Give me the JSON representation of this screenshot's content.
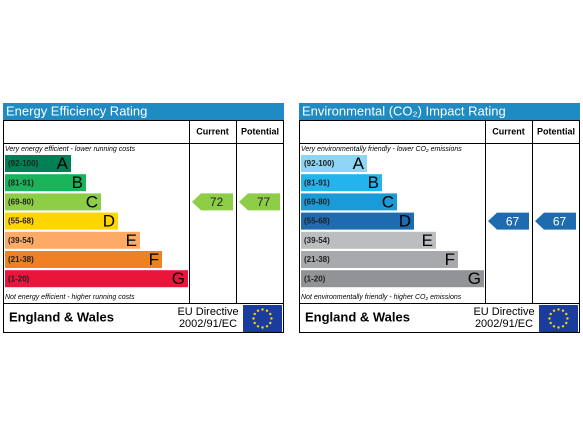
{
  "panels": [
    {
      "title": "Energy Efficiency Rating",
      "col_current": "Current",
      "col_potential": "Potential",
      "top_note": "Very energy efficient - lower running costs",
      "bottom_note": "Not energy efficient - higher running costs",
      "bands": [
        {
          "range": "(92-100)",
          "letter": "A",
          "color": "#008054"
        },
        {
          "range": "(81-91)",
          "letter": "B",
          "color": "#19b459"
        },
        {
          "range": "(69-80)",
          "letter": "C",
          "color": "#8dce46"
        },
        {
          "range": "(55-68)",
          "letter": "D",
          "color": "#ffd500"
        },
        {
          "range": "(39-54)",
          "letter": "E",
          "color": "#fcaa65"
        },
        {
          "range": "(21-38)",
          "letter": "F",
          "color": "#ef8023"
        },
        {
          "range": "(1-20)",
          "letter": "G",
          "color": "#e9153b"
        }
      ],
      "current": 72,
      "potential": 77,
      "footer": "England & Wales",
      "directive_line1": "EU Directive",
      "directive_line2": "2002/91/EC"
    },
    {
      "title": "Environmental (CO₂) Impact Rating",
      "col_current": "Current",
      "col_potential": "Potential",
      "top_note": "Very environmentally friendly - lower CO₂ emissions",
      "bottom_note": "Not environmentally friendly - higher CO₂ emissions",
      "bands": [
        {
          "range": "(92-100)",
          "letter": "A",
          "color": "#8dd5f4"
        },
        {
          "range": "(81-91)",
          "letter": "B",
          "color": "#22b5eb"
        },
        {
          "range": "(69-80)",
          "letter": "C",
          "color": "#1a9ad6"
        },
        {
          "range": "(55-68)",
          "letter": "D",
          "color": "#1e6bb0"
        },
        {
          "range": "(39-54)",
          "letter": "E",
          "color": "#bbbdbf"
        },
        {
          "range": "(21-38)",
          "letter": "F",
          "color": "#a7a9ac"
        },
        {
          "range": "(1-20)",
          "letter": "G",
          "color": "#919396"
        }
      ],
      "current": 67,
      "potential": 67,
      "footer": "England & Wales",
      "directive_line1": "EU Directive",
      "directive_line2": "2002/91/EC"
    }
  ]
}
